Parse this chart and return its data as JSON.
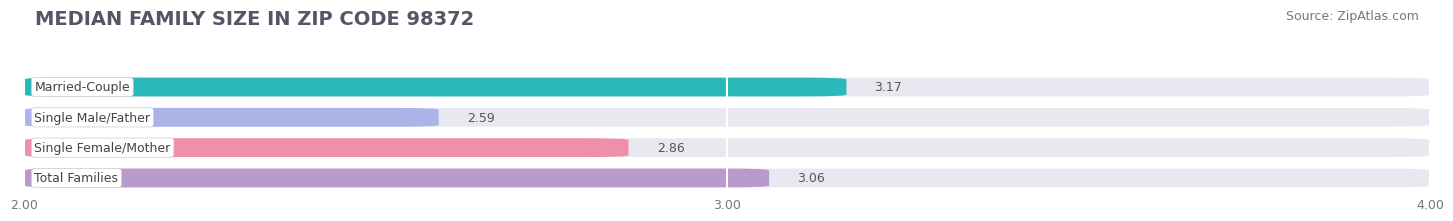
{
  "title": "MEDIAN FAMILY SIZE IN ZIP CODE 98372",
  "source": "Source: ZipAtlas.com",
  "categories": [
    "Married-Couple",
    "Single Male/Father",
    "Single Female/Mother",
    "Total Families"
  ],
  "values": [
    3.17,
    2.59,
    2.86,
    3.06
  ],
  "bar_colors": [
    "#2ab8b8",
    "#aab4e8",
    "#f090a8",
    "#b89acc"
  ],
  "bar_bg_color": "#e8e8f0",
  "xlim": [
    2.0,
    4.0
  ],
  "xticks": [
    2.0,
    3.0,
    4.0
  ],
  "xtick_labels": [
    "2.00",
    "3.00",
    "4.00"
  ],
  "background_color": "#ffffff",
  "title_fontsize": 14,
  "label_fontsize": 9,
  "value_fontsize": 9,
  "source_fontsize": 9
}
